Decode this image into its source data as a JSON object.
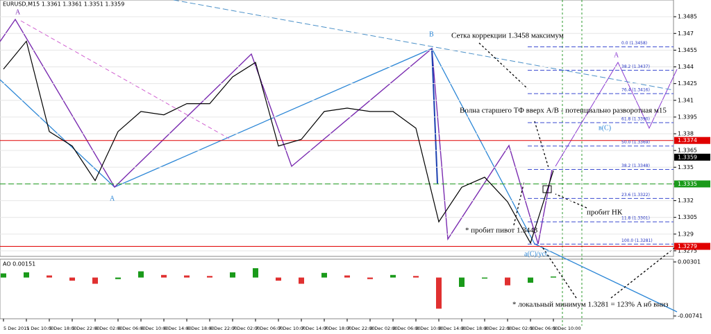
{
  "chart_data": {
    "type": "line",
    "title": "EURUSD,M15  1.3361 1.3361 1.3351 1.3359",
    "categories": [
      "5 Dec 2011",
      "5 Dec 10:00",
      "5 Dec 18:00",
      "5 Dec 22:00",
      "6 Dec 02:00",
      "6 Dec 06:00",
      "6 Dec 10:00",
      "6 Dec 14:00",
      "6 Dec 18:00",
      "6 Dec 22:00",
      "7 Dec 02:00",
      "7 Dec 06:00",
      "7 Dec 10:00",
      "7 Dec 14:00",
      "7 Dec 18:00",
      "7 Dec 22:00",
      "8 Dec 02:00",
      "8 Dec 06:00",
      "8 Dec 10:00",
      "8 Dec 14:00",
      "8 Dec 18:00",
      "8 Dec 22:00",
      "9 Dec 02:00",
      "9 Dec 06:00",
      "9 Dec 10:00"
    ],
    "values": [
      1.3438,
      1.3463,
      1.3382,
      1.3369,
      1.3338,
      1.3382,
      1.34,
      1.3397,
      1.3407,
      1.3407,
      1.3431,
      1.3444,
      1.3369,
      1.3375,
      1.34,
      1.3403,
      1.34,
      1.34,
      1.3385,
      1.3301,
      1.3332,
      1.3341,
      1.3319,
      1.3282,
      1.3347
    ],
    "color": "#000000",
    "ylim": [
      1.327,
      1.35
    ],
    "yticks": [
      1.3275,
      1.329,
      1.3305,
      1.332,
      1.3335,
      1.335,
      1.3365,
      1.338,
      1.3395,
      1.341,
      1.3425,
      1.344,
      1.3455,
      1.347,
      1.3485
    ],
    "grid": true,
    "current": 1.3359,
    "levels": [
      {
        "value": 1.3374,
        "color": "#e00000"
      },
      {
        "value": 1.3335,
        "color": "#1a9a1a"
      },
      {
        "value": 1.3279,
        "color": "#e00000"
      }
    ],
    "fib": [
      {
        "value": 1.3458,
        "label": "0.0 (1.3458)"
      },
      {
        "value": 1.3437,
        "label": "38.2 (1.3437)"
      },
      {
        "value": 1.3416,
        "label": "76.4 (1.3416)"
      },
      {
        "value": 1.339,
        "label": "61.8 (1.3390)"
      },
      {
        "value": 1.3369,
        "label": "50.0 (1.3369)"
      },
      {
        "value": 1.3348,
        "label": "38.2 (1.3348)"
      },
      {
        "value": 1.3322,
        "label": "23.6 (1.3322)"
      },
      {
        "value": 1.3301,
        "label": "11.8 (1.3301)"
      },
      {
        "value": 1.3281,
        "label": "100.0 (1.3281)"
      }
    ],
    "annotations": [
      "Сетка коррекции 1.3458 максимум",
      "Волна старшего ТФ вверх А/В - потенциально разворотная м15",
      "* пробит пивот 1.3443",
      "пробит НК",
      "* локальный минимум 1.3281 = 123% A нб вниз",
      "A",
      "B",
      "A",
      "a(C)/усС",
      "в(C)",
      "A"
    ],
    "ao": {
      "title": "AO 0.00151",
      "values": [
        0.0008,
        0.001,
        0.0004,
        -0.0006,
        -0.0012,
        -0.0003,
        0.0012,
        0.0005,
        0.0004,
        0.0003,
        0.001,
        0.0018,
        -0.0006,
        -0.0012,
        0.0009,
        0.0004,
        -0.0003,
        0.0005,
        0.0003,
        -0.006,
        -0.0018,
        -0.0002,
        -0.0015,
        -0.001,
        0.0002
      ],
      "ylim": [
        -0.00741,
        0.00301
      ],
      "yticks": [
        0.00301,
        -0.00741
      ]
    }
  }
}
